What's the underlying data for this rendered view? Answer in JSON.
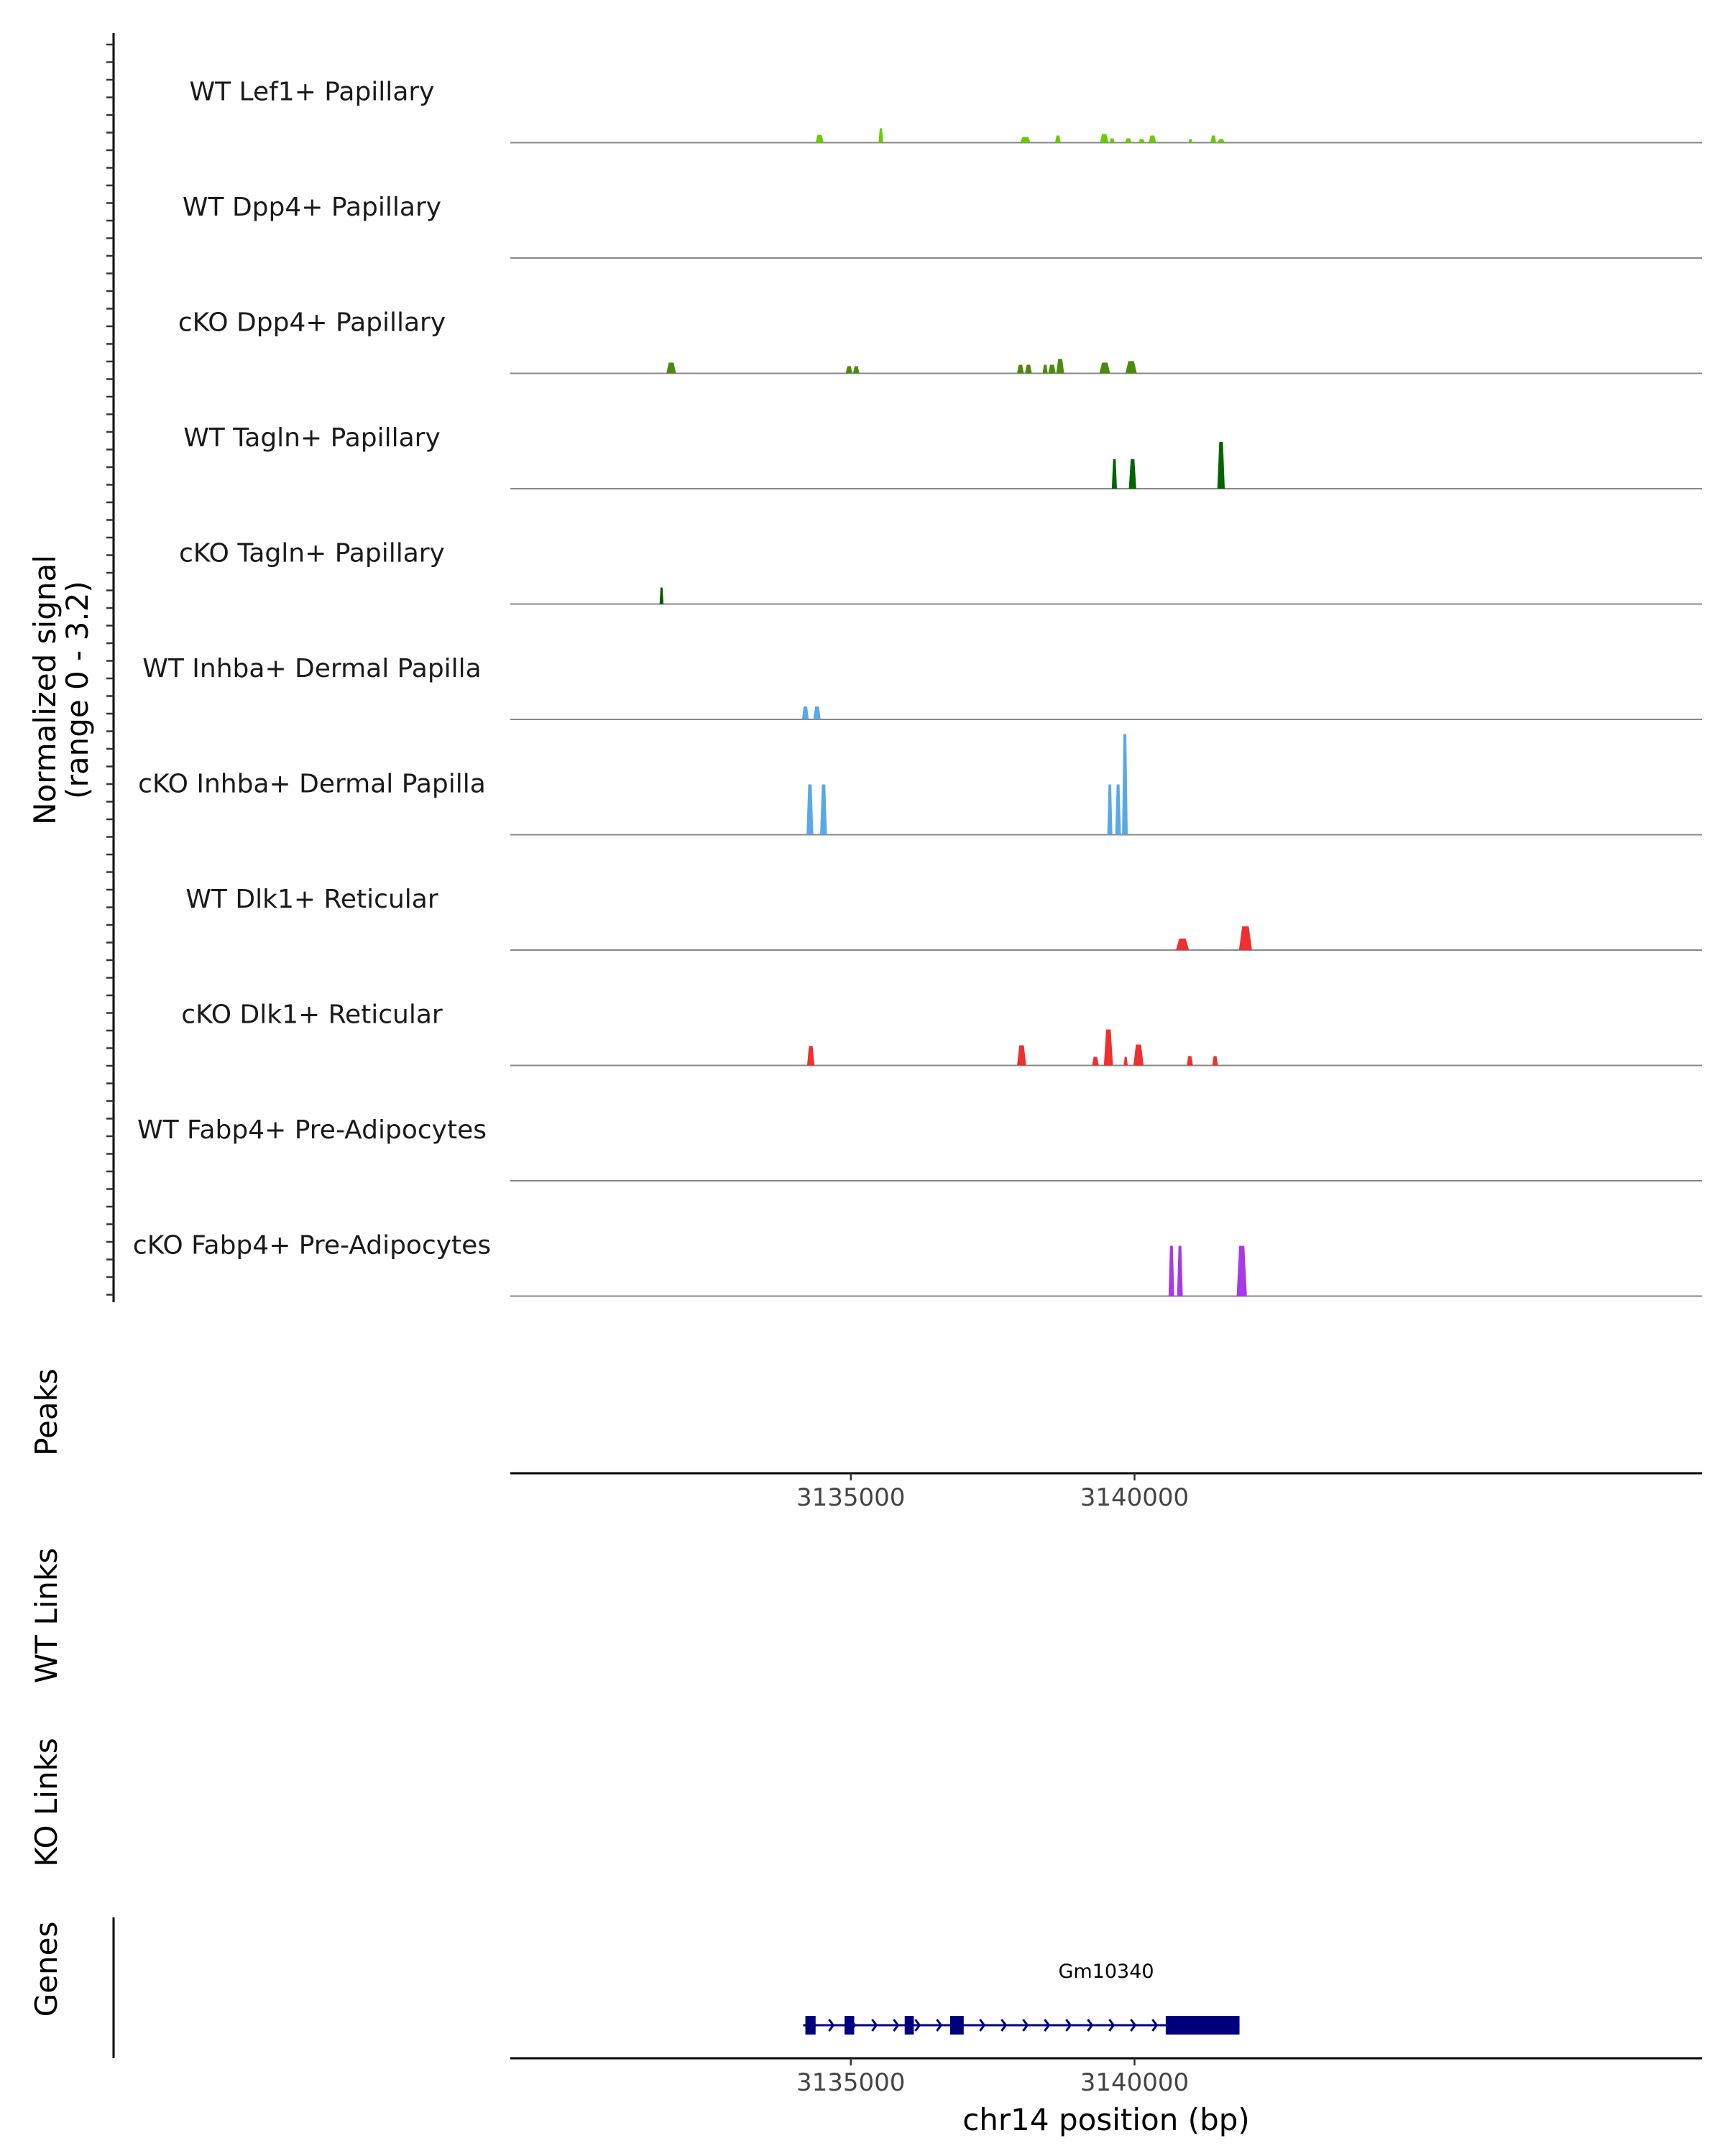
{
  "chart_data": {
    "type": "area",
    "title": "",
    "chromosome": "chr14",
    "xlabel": "chr14 position (bp)",
    "xlim": [
      3129000,
      3150000
    ],
    "xticks": [
      3135000,
      3140000
    ],
    "xtick_labels": [
      "3135000",
      "3140000"
    ],
    "ylabel_line1": "Normalized signal",
    "ylabel_line2": "(range 0 - 3.2)",
    "ylim": [
      0,
      3.2
    ],
    "series": [
      {
        "name": "WT Lef1+ Papillary",
        "color": "#66CC00",
        "peaks": [
          [
            3134380,
            3134520,
            0.22
          ],
          [
            3135490,
            3135570,
            0.4
          ],
          [
            3137980,
            3138170,
            0.16
          ],
          [
            3138600,
            3138700,
            0.2
          ],
          [
            3139390,
            3139540,
            0.24
          ],
          [
            3139560,
            3139650,
            0.12
          ],
          [
            3139830,
            3139950,
            0.12
          ],
          [
            3140070,
            3140180,
            0.1
          ],
          [
            3140250,
            3140380,
            0.2
          ],
          [
            3140950,
            3141020,
            0.1
          ],
          [
            3141340,
            3141440,
            0.2
          ],
          [
            3141460,
            3141590,
            0.1
          ]
        ]
      },
      {
        "name": "WT Dpp4+ Papillary",
        "color": "#55A01A",
        "peaks": []
      },
      {
        "name": "cKO Dpp4+ Papillary",
        "color": "#4C8A0F",
        "peaks": [
          [
            3131750,
            3131920,
            0.3
          ],
          [
            3134910,
            3135030,
            0.2
          ],
          [
            3135040,
            3135150,
            0.2
          ],
          [
            3137930,
            3138050,
            0.24
          ],
          [
            3138070,
            3138190,
            0.24
          ],
          [
            3138380,
            3138470,
            0.24
          ],
          [
            3138480,
            3138610,
            0.24
          ],
          [
            3138620,
            3138760,
            0.4
          ],
          [
            3139380,
            3139570,
            0.3
          ],
          [
            3139840,
            3140040,
            0.34
          ]
        ]
      },
      {
        "name": "WT Tagln+ Papillary",
        "color": "#006400",
        "peaks": [
          [
            3139600,
            3139690,
            0.82
          ],
          [
            3139900,
            3140030,
            0.82
          ],
          [
            3141460,
            3141590,
            1.3
          ]
        ]
      },
      {
        "name": "cKO Tagln+ Papillary",
        "color": "#005C00",
        "peaks": [
          [
            3131630,
            3131700,
            0.46
          ]
        ]
      },
      {
        "name": "WT Inhba+ Dermal Papilla",
        "color": "#5AA8E6",
        "peaks": [
          [
            3134140,
            3134260,
            0.36
          ],
          [
            3134340,
            3134470,
            0.36
          ]
        ]
      },
      {
        "name": "cKO Inhba+ Dermal Papilla",
        "color": "#5AA8E6",
        "peaks": [
          [
            3134220,
            3134340,
            1.4
          ],
          [
            3134460,
            3134580,
            1.4
          ],
          [
            3139520,
            3139610,
            1.4
          ],
          [
            3139660,
            3139760,
            1.4
          ],
          [
            3139780,
            3139880,
            2.8
          ]
        ]
      },
      {
        "name": "WT Dlk1+ Reticular",
        "color": "#EE3030",
        "peaks": [
          [
            3140730,
            3140960,
            0.32
          ],
          [
            3141840,
            3142070,
            0.66
          ]
        ]
      },
      {
        "name": "cKO Dlk1+ Reticular",
        "color": "#EE3030",
        "peaks": [
          [
            3134230,
            3134360,
            0.54
          ],
          [
            3137930,
            3138090,
            0.56
          ],
          [
            3139250,
            3139370,
            0.24
          ],
          [
            3139460,
            3139620,
            1.0
          ],
          [
            3139810,
            3139880,
            0.24
          ],
          [
            3139980,
            3140160,
            0.58
          ],
          [
            3140920,
            3141030,
            0.26
          ],
          [
            3141370,
            3141470,
            0.26
          ]
        ]
      },
      {
        "name": "WT Fabp4+ Pre-Adipocytes",
        "color": "#A838E8",
        "peaks": []
      },
      {
        "name": "cKO Fabp4+ Pre-Adipocytes",
        "color": "#A838E8",
        "peaks": [
          [
            3140600,
            3140700,
            1.4
          ],
          [
            3140750,
            3140850,
            1.4
          ],
          [
            3141800,
            3141980,
            1.4
          ]
        ]
      }
    ],
    "tracks": [
      "Peaks",
      "WT Links",
      "KO Links",
      "Genes"
    ],
    "genes": [
      {
        "name": "Gm10340",
        "strand": "+",
        "start": 3134160,
        "end": 3141850,
        "exons": [
          [
            3134200,
            3134380
          ],
          [
            3134890,
            3135060
          ],
          [
            3135950,
            3136110
          ],
          [
            3136750,
            3136990
          ],
          [
            3140550,
            3141850
          ]
        ],
        "color": "#00007F"
      }
    ]
  }
}
